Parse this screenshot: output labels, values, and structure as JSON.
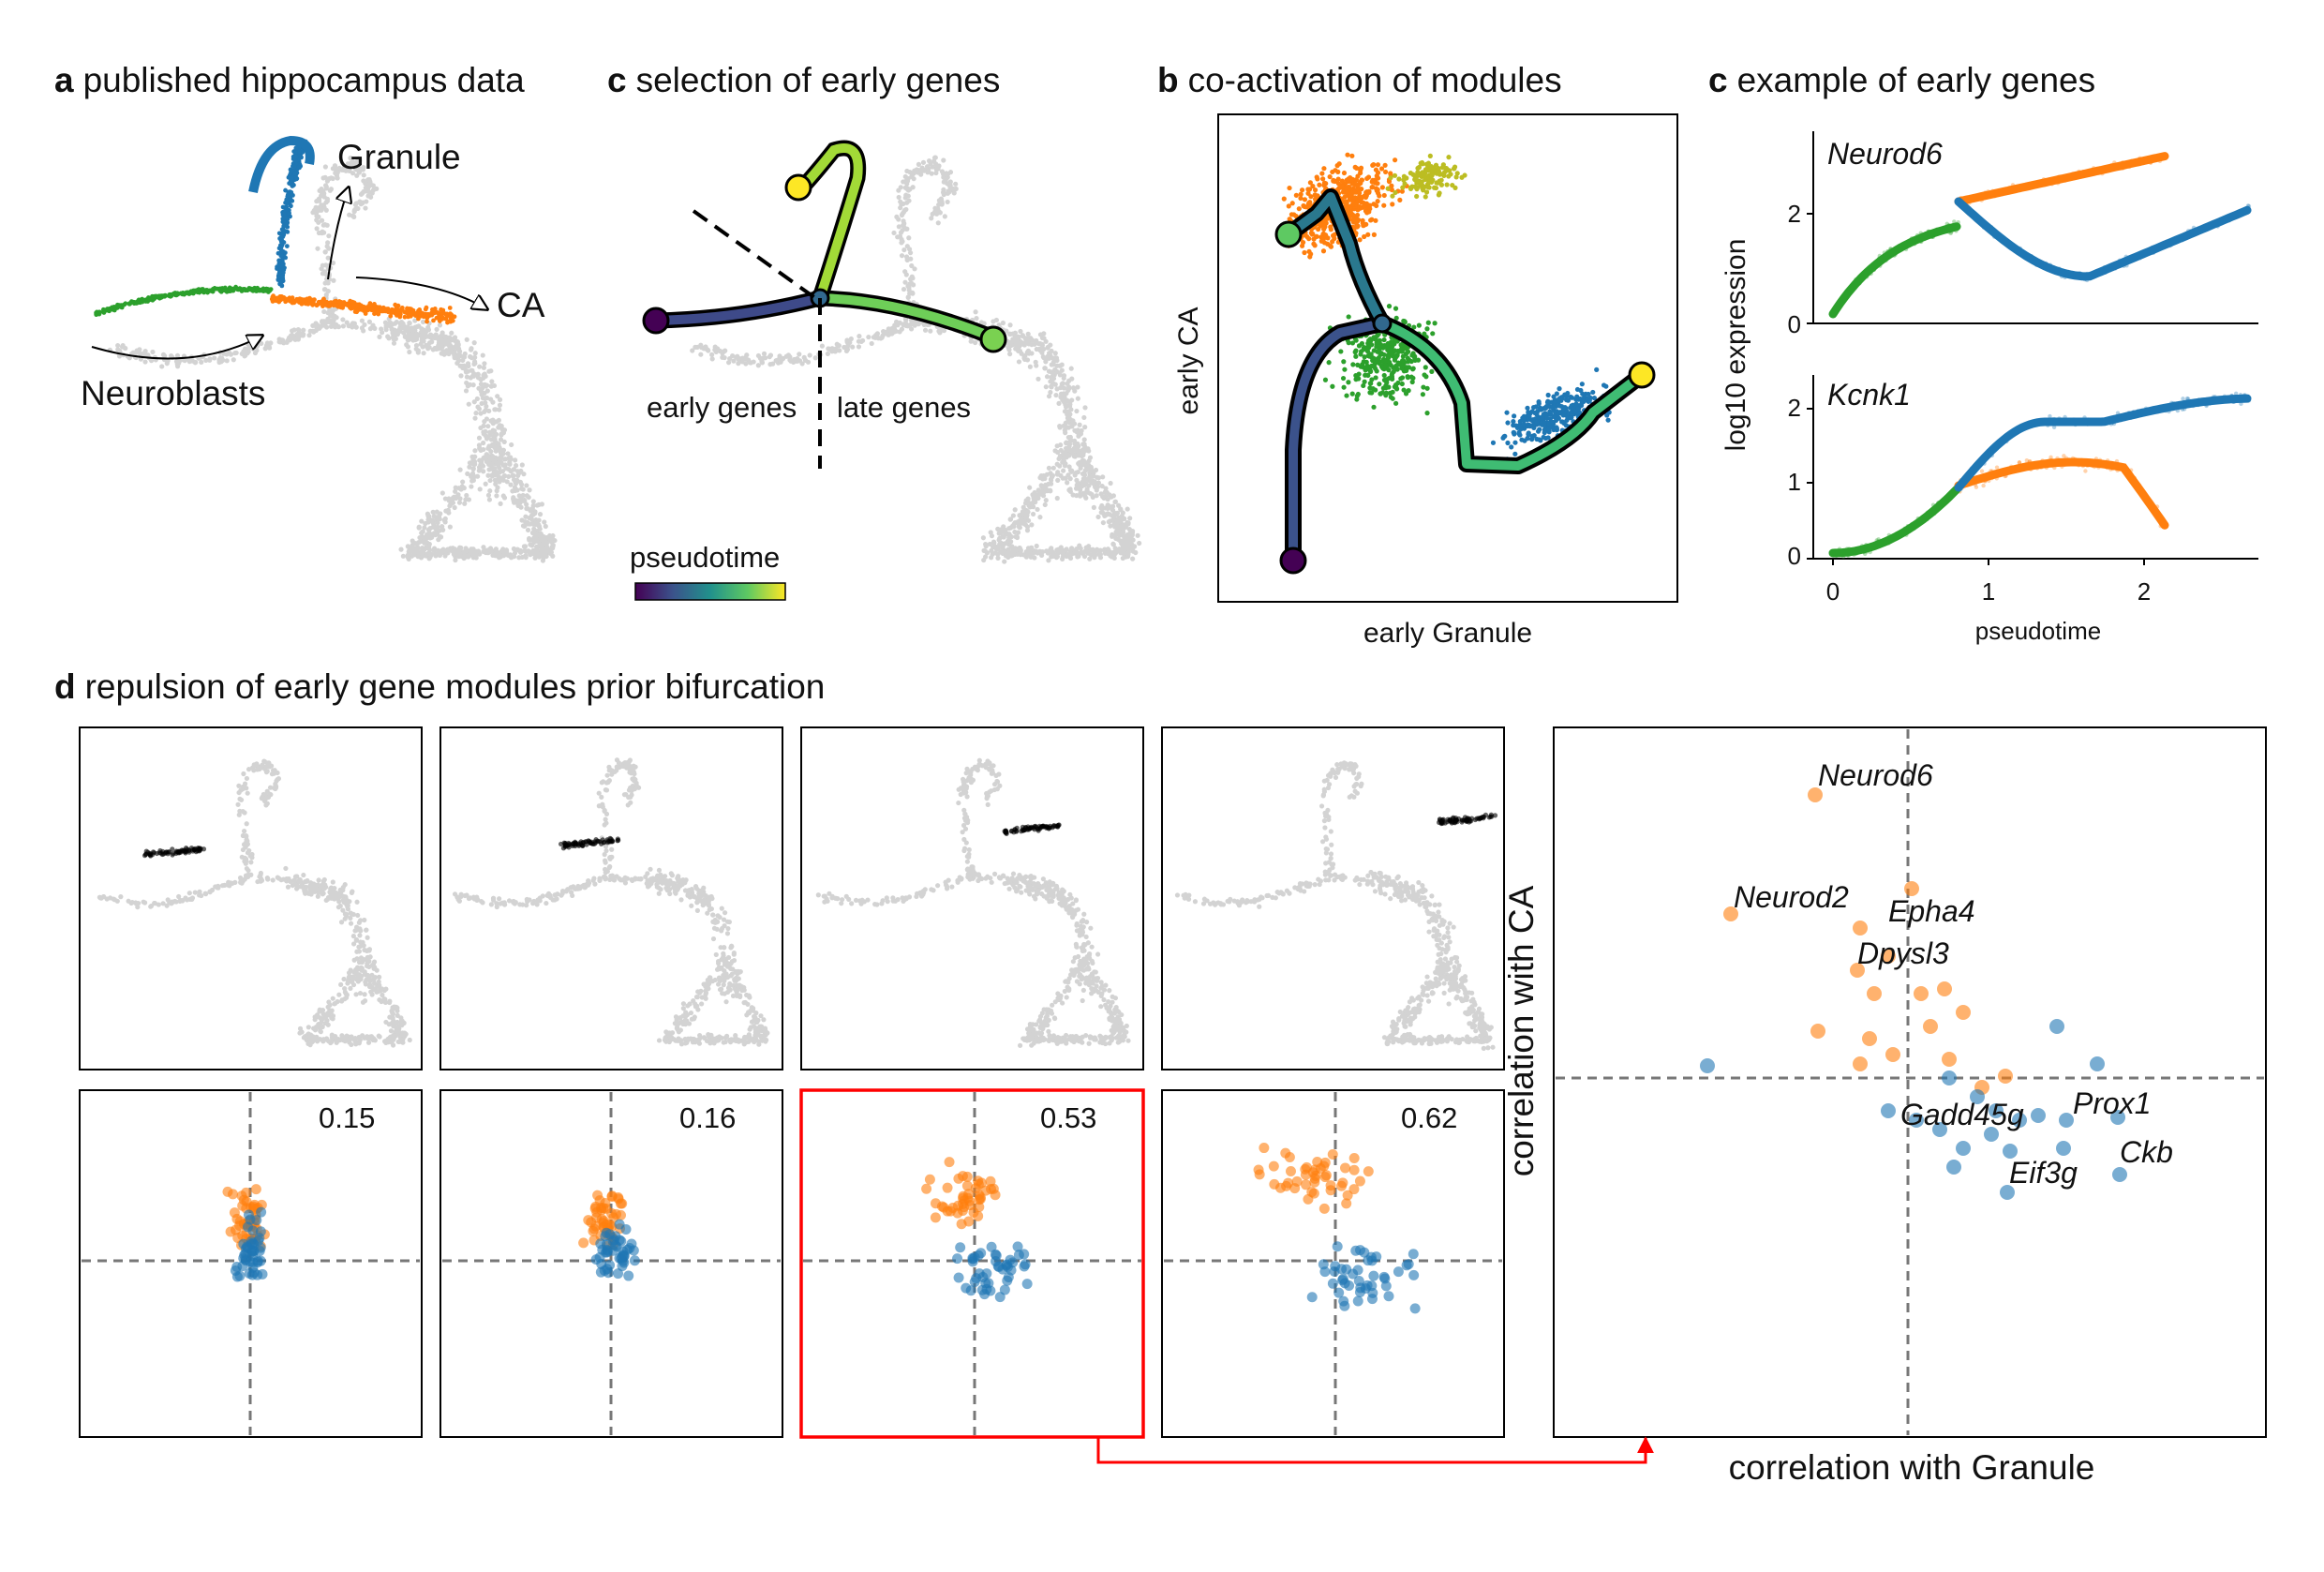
{
  "panel_a": {
    "letter": "a",
    "title": "published hippocampus data",
    "labels": {
      "granule": "Granule",
      "ca": "CA",
      "neuroblasts": "Neuroblasts"
    }
  },
  "panel_c_left": {
    "letter": "c",
    "title": "selection of early genes",
    "labels": {
      "early": "early genes",
      "late": "late genes",
      "colorbar": "pseudotime"
    }
  },
  "panel_b": {
    "letter": "b",
    "title": "co-activation of modules",
    "xlabel": "early Granule",
    "ylabel": "early CA"
  },
  "panel_c_right": {
    "letter": "c",
    "title": "example of early genes",
    "ylabel": "log10 expression",
    "xlabel": "pseudotime",
    "top_gene": "Neurod6",
    "bottom_gene": "Kcnk1",
    "top_yticks": [
      "0",
      "2"
    ],
    "bottom_yticks": [
      "0",
      "1",
      "2"
    ],
    "xticks": [
      "0",
      "1",
      "2"
    ]
  },
  "panel_d": {
    "letter": "d",
    "title": "repulsion of early gene modules prior bifurcation",
    "values": [
      "0.15",
      "0.16",
      "0.53",
      "0.62"
    ],
    "big_xlabel": "correlation with Granule",
    "big_ylabel": "correlation with CA",
    "genes": {
      "neurod6": "Neurod6",
      "neurod2": "Neurod2",
      "epha4": "Epha4",
      "dpysl3": "Dpysl3",
      "gadd45g": "Gadd45g",
      "prox1": "Prox1",
      "eif3g": "Eif3g",
      "ckb": "Ckb"
    }
  },
  "colors": {
    "granule": "#1f77b4",
    "ca": "#ff7f0e",
    "neuroblast": "#2ca02c",
    "background_cells": "#d3d3d3",
    "highlight": "#ff0000"
  }
}
